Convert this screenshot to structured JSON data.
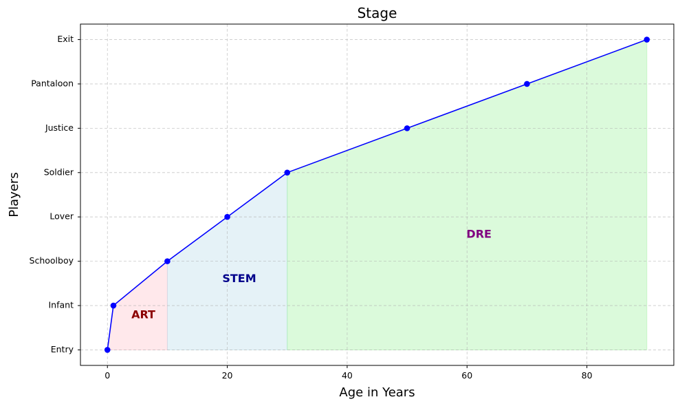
{
  "chart_data": {
    "type": "line",
    "title": "Stage",
    "xlabel": "Age in Years",
    "ylabel": "Players",
    "xlim": [
      -4.5,
      94.5
    ],
    "xticks": [
      0,
      20,
      40,
      60,
      80
    ],
    "categories": [
      "Entry",
      "Infant",
      "Schoolboy",
      "Lover",
      "Soldier",
      "Justice",
      "Pantaloon",
      "Exit"
    ],
    "grid": true,
    "series": [
      {
        "color": "#0000ff",
        "x": [
          0,
          1,
          10,
          20,
          30,
          50,
          70,
          90
        ],
        "y": [
          "Entry",
          "Infant",
          "Schoolboy",
          "Lover",
          "Soldier",
          "Justice",
          "Pantaloon",
          "Exit"
        ]
      }
    ],
    "regions": [
      {
        "label": "ART",
        "x_start": 0,
        "x_end": 10,
        "fill": "#ffb6c1",
        "text_color": "#8b0000",
        "label_x": 6,
        "label_y": 0.78
      },
      {
        "label": "STEM",
        "x_start": 10,
        "x_end": 30,
        "fill": "#add8e6",
        "text_color": "#00008b",
        "label_x": 22,
        "label_y": 1.6
      },
      {
        "label": "DRE",
        "x_start": 30,
        "x_end": 90,
        "fill": "#90ee90",
        "text_color": "#800080",
        "label_x": 62,
        "label_y": 2.6
      }
    ]
  }
}
